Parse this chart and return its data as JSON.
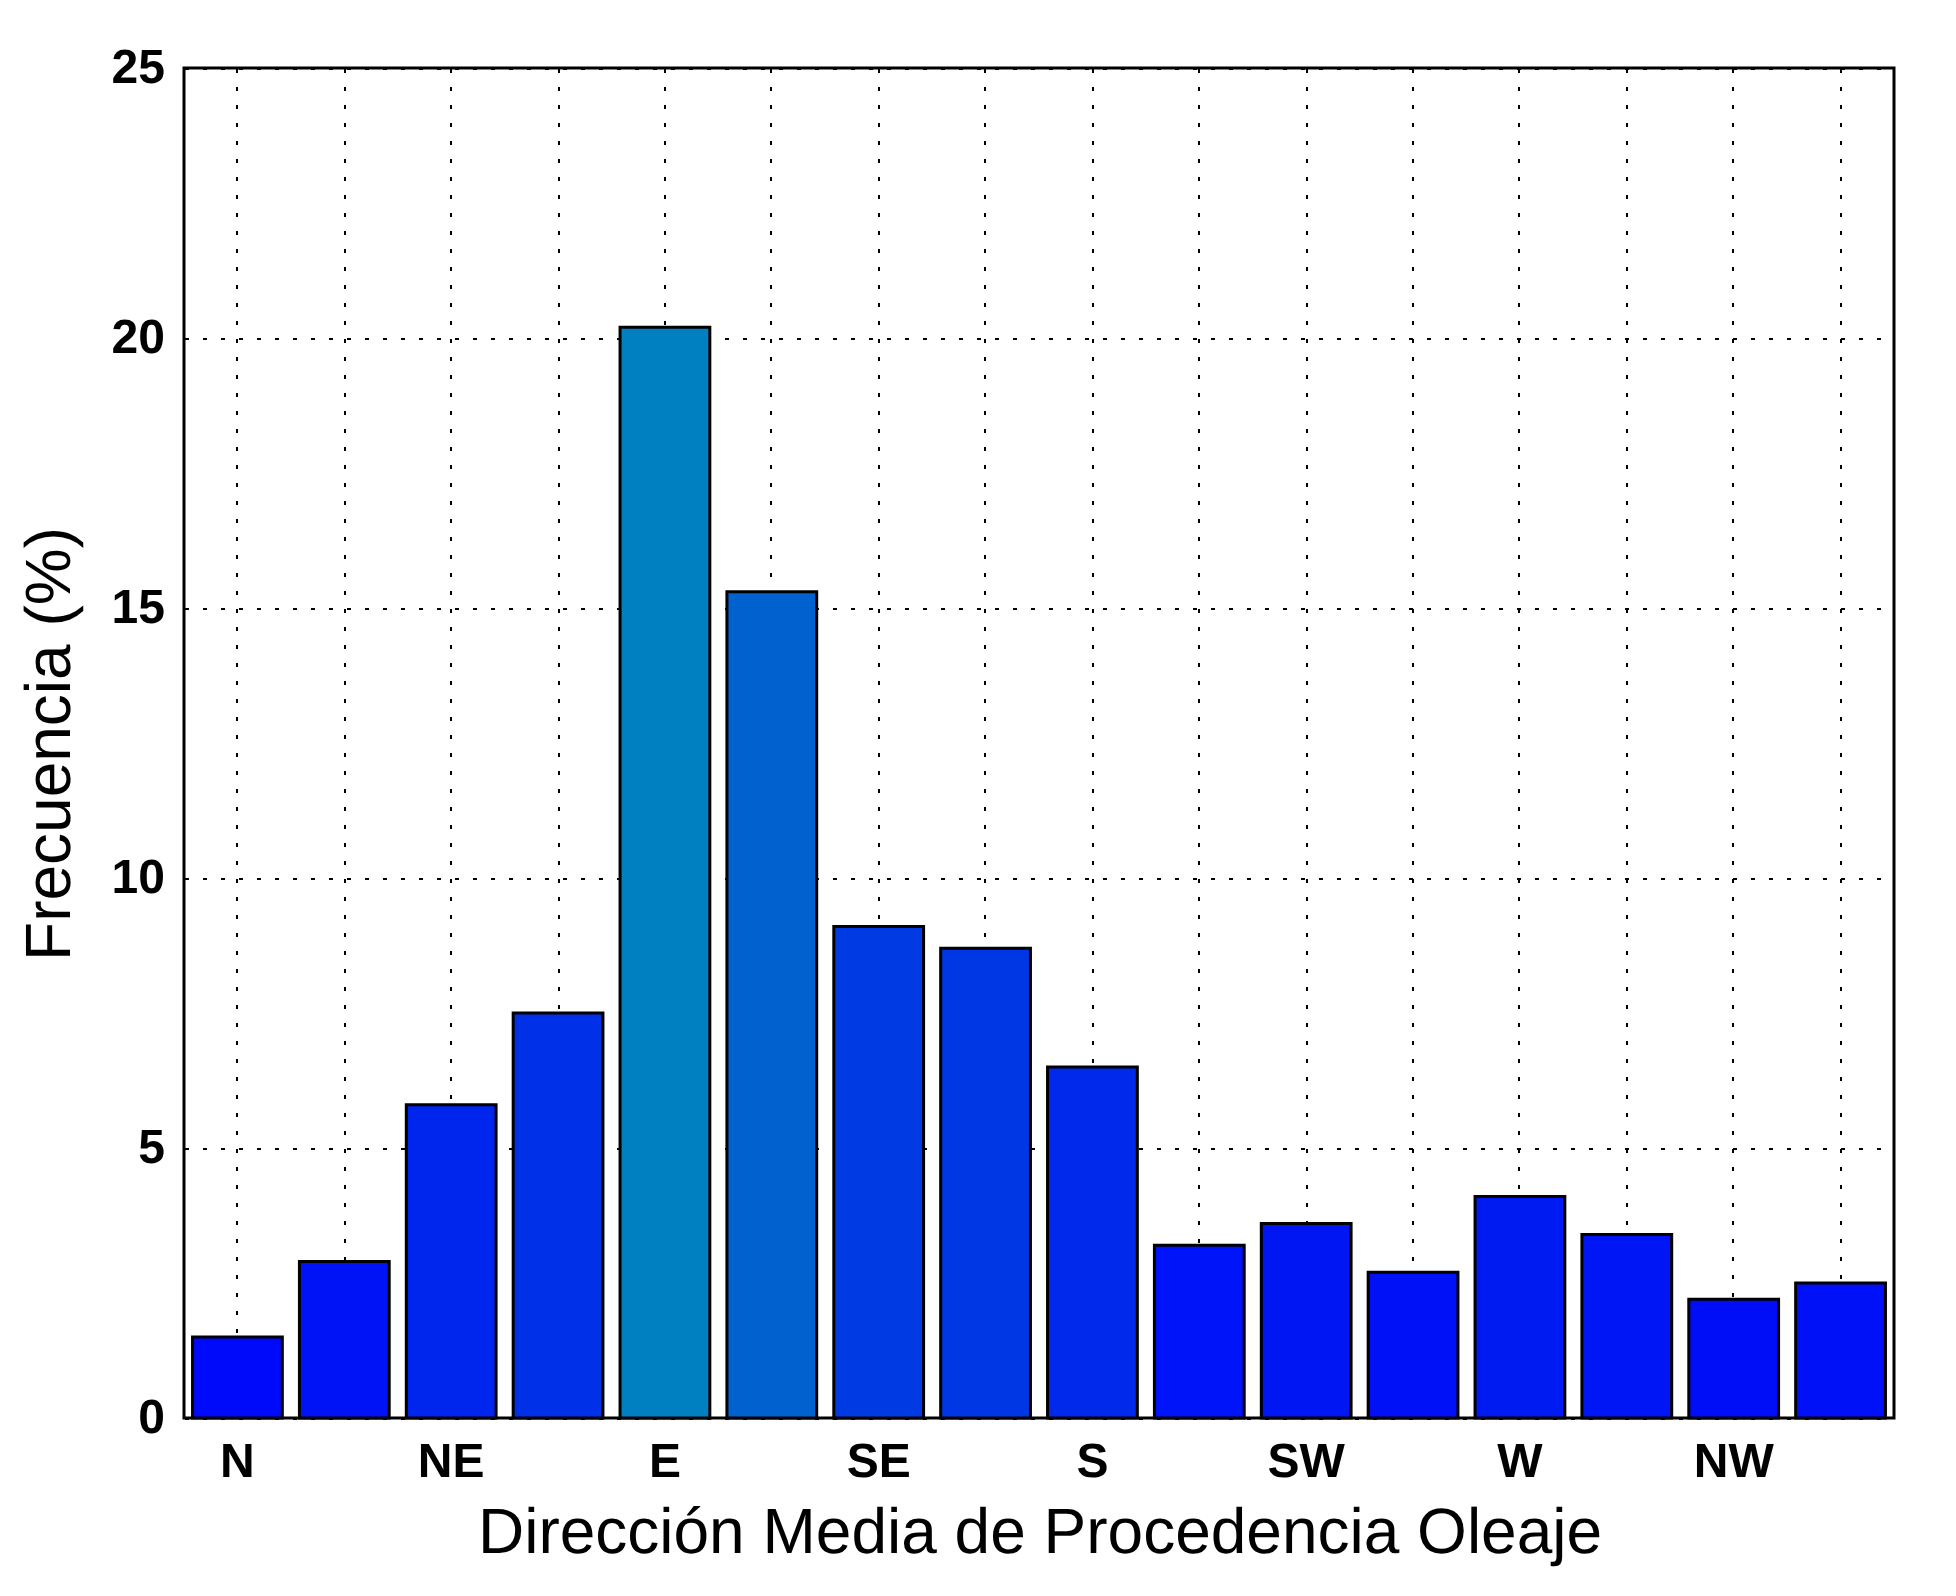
{
  "chart_data": {
    "type": "bar",
    "xlabel": "Dirección Media de Procedencia Oleaje",
    "ylabel": "Frecuencia (%)",
    "categories": [
      "N",
      null,
      "NE",
      null,
      "E",
      null,
      "SE",
      null,
      "S",
      null,
      "SW",
      null,
      "W",
      null,
      "NW",
      null
    ],
    "values": [
      1.5,
      2.9,
      5.8,
      7.5,
      20.2,
      15.3,
      9.1,
      8.7,
      6.5,
      3.2,
      3.6,
      2.7,
      4.1,
      3.4,
      2.2,
      2.5
    ],
    "colors": [
      "#000afa",
      "#0013f6",
      "#0025ed",
      "#0030e8",
      "#0080c0",
      "#0061cf",
      "#003ae3",
      "#0037e4",
      "#0029eb",
      "#0014f9",
      "#0017f4",
      "#0011f7",
      "#001af2",
      "#0016f5",
      "#000ef8",
      "#0010f7"
    ],
    "ylim": [
      0,
      25
    ],
    "yticks": [
      0,
      5,
      10,
      15,
      20,
      25
    ],
    "grid": true
  }
}
